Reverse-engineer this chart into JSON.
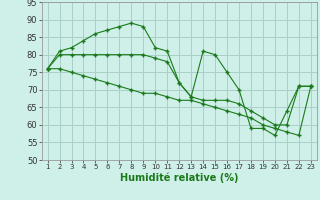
{
  "xlabel": "Humidité relative (%)",
  "background_color": "#cff0e8",
  "grid_color": "#aacfc8",
  "line_color": "#1a7a1a",
  "x": [
    1,
    2,
    3,
    4,
    5,
    6,
    7,
    8,
    9,
    10,
    11,
    12,
    13,
    14,
    15,
    16,
    17,
    18,
    19,
    20,
    21,
    22,
    23
  ],
  "line1": [
    76,
    81,
    82,
    84,
    86,
    87,
    88,
    89,
    88,
    82,
    81,
    72,
    68,
    81,
    80,
    75,
    70,
    59,
    59,
    57,
    64,
    71,
    71
  ],
  "line2": [
    76,
    80,
    80,
    80,
    80,
    80,
    80,
    80,
    80,
    79,
    78,
    72,
    68,
    67,
    67,
    67,
    66,
    64,
    62,
    60,
    60,
    71,
    71
  ],
  "line3": [
    76,
    76,
    75,
    74,
    73,
    72,
    71,
    70,
    69,
    69,
    68,
    67,
    67,
    66,
    65,
    64,
    63,
    62,
    60,
    59,
    58,
    57,
    71
  ],
  "ylim": [
    50,
    95
  ],
  "yticks": [
    50,
    55,
    60,
    65,
    70,
    75,
    80,
    85,
    90,
    95
  ],
  "xlim": [
    0.5,
    23.5
  ]
}
